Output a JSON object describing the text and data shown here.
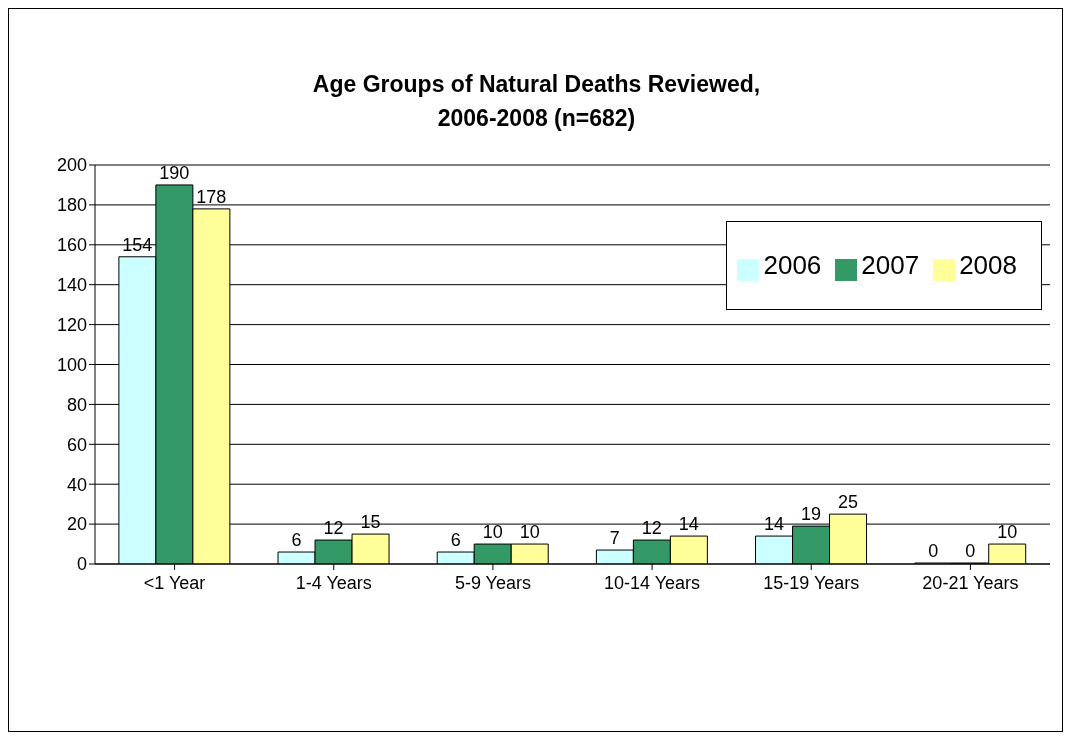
{
  "chart_data": {
    "type": "bar",
    "title": "Age Groups of Natural Deaths Reviewed,\n2006-2008 (n=682)",
    "categories": [
      "<1 Year",
      "1-4 Years",
      "5-9 Years",
      "10-14 Years",
      "15-19 Years",
      "20-21 Years"
    ],
    "series": [
      {
        "name": "2006",
        "color": "#ccffff",
        "values": [
          154,
          6,
          6,
          7,
          14,
          0
        ]
      },
      {
        "name": "2007",
        "color": "#339966",
        "values": [
          190,
          12,
          10,
          12,
          19,
          0
        ]
      },
      {
        "name": "2008",
        "color": "#ffff99",
        "values": [
          178,
          15,
          10,
          14,
          25,
          10
        ]
      }
    ],
    "ylim": [
      0,
      200
    ],
    "yticks": [
      0,
      20,
      40,
      60,
      80,
      100,
      120,
      140,
      160,
      180,
      200
    ],
    "grid": "y",
    "legend": "top right",
    "data_labels": true
  }
}
